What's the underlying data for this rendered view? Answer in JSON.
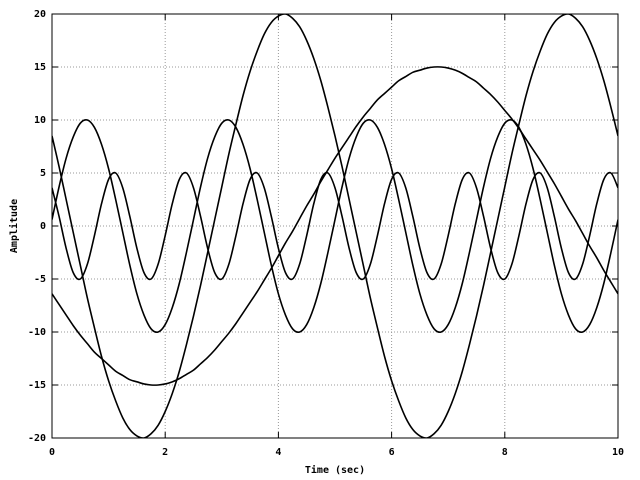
{
  "chart_data": {
    "type": "line",
    "xlabel": "Time (sec)",
    "ylabel": "Amplitude",
    "xlim": [
      0,
      10
    ],
    "ylim": [
      -20,
      20
    ],
    "xticks": [
      0,
      2,
      4,
      6,
      8,
      10
    ],
    "yticks": [
      -20,
      -15,
      -10,
      -5,
      0,
      5,
      10,
      15,
      20
    ],
    "grid": true,
    "x": [
      0,
      0.125,
      0.25,
      0.375,
      0.5,
      0.625,
      0.75,
      0.875,
      1,
      1.125,
      1.25,
      1.375,
      1.5,
      1.625,
      1.75,
      1.875,
      2,
      2.125,
      2.25,
      2.375,
      2.5,
      2.625,
      2.75,
      2.875,
      3,
      3.125,
      3.25,
      3.375,
      3.5,
      3.625,
      3.75,
      3.875,
      4,
      4.125,
      4.25,
      4.375,
      4.5,
      4.625,
      4.75,
      4.875,
      5,
      5.125,
      5.25,
      5.375,
      5.5,
      5.625,
      5.75,
      5.875,
      6,
      6.125,
      6.25,
      6.375,
      6.5,
      6.625,
      6.75,
      6.875,
      7,
      7.125,
      7.25,
      7.375,
      7.5,
      7.625,
      7.75,
      7.875,
      8,
      8.125,
      8.25,
      8.375,
      8.5,
      8.625,
      8.75,
      8.875,
      9,
      9.125,
      9.25,
      9.375,
      9.5,
      9.625,
      9.75,
      9.875,
      10
    ],
    "series": [
      {
        "color": "#000000",
        "values": [
          3.6,
          0.9,
          -2.1,
          -4.4,
          -5.0,
          -3.6,
          -0.9,
          2.1,
          4.4,
          5.0,
          3.6,
          0.9,
          -2.1,
          -4.4,
          -5.0,
          -3.6,
          -0.9,
          2.1,
          4.4,
          5.0,
          3.6,
          0.9,
          -2.1,
          -4.4,
          -5.0,
          -3.6,
          -0.9,
          2.1,
          4.4,
          5.0,
          3.6,
          0.9,
          -2.1,
          -4.4,
          -5.0,
          -3.6,
          -0.9,
          2.1,
          4.4,
          5.0,
          3.6,
          0.9,
          -2.1,
          -4.4,
          -5.0,
          -3.6,
          -0.9,
          2.1,
          4.4,
          5.0,
          3.6,
          0.9,
          -2.1,
          -4.4,
          -5.0,
          -3.6,
          -0.9,
          2.1,
          4.4,
          5.0,
          3.6,
          0.9,
          -2.1,
          -4.4,
          -5.0,
          -3.6,
          -0.9,
          2.1,
          4.4,
          5.0,
          3.6,
          0.9,
          -2.1,
          -4.4,
          -5.0,
          -3.6,
          -0.9,
          2.1,
          4.4,
          5.0,
          3.6
        ]
      },
      {
        "color": "#000000",
        "values": [
          0.6,
          3.7,
          6.4,
          8.4,
          9.7,
          10.0,
          9.3,
          7.7,
          5.4,
          2.5,
          -0.6,
          -3.7,
          -6.4,
          -8.4,
          -9.7,
          -10.0,
          -9.3,
          -7.7,
          -5.4,
          -2.5,
          0.6,
          3.7,
          6.4,
          8.4,
          9.7,
          10.0,
          9.3,
          7.7,
          5.4,
          2.5,
          -0.6,
          -3.7,
          -6.4,
          -8.4,
          -9.7,
          -10.0,
          -9.3,
          -7.7,
          -5.4,
          -2.5,
          0.6,
          3.7,
          6.4,
          8.4,
          9.7,
          10.0,
          9.3,
          7.7,
          5.4,
          2.5,
          -0.6,
          -3.7,
          -6.4,
          -8.4,
          -9.7,
          -10.0,
          -9.3,
          -7.7,
          -5.4,
          -2.5,
          0.6,
          3.7,
          6.4,
          8.4,
          9.7,
          10.0,
          9.3,
          7.7,
          5.4,
          2.5,
          -0.6,
          -3.7,
          -6.4,
          -8.4,
          -9.7,
          -10.0,
          -9.3,
          -7.7,
          -5.4,
          -2.5,
          0.6
        ]
      },
      {
        "color": "#000000",
        "values": [
          8.5,
          5.6,
          2.5,
          -0.6,
          -3.7,
          -6.8,
          -9.6,
          -12.3,
          -14.6,
          -16.5,
          -18.1,
          -19.2,
          -19.8,
          -20.0,
          -19.6,
          -18.8,
          -17.5,
          -15.8,
          -13.7,
          -11.2,
          -8.5,
          -5.6,
          -2.5,
          0.6,
          3.7,
          6.8,
          9.6,
          12.3,
          14.6,
          16.5,
          18.1,
          19.2,
          19.8,
          20.0,
          19.6,
          18.8,
          17.5,
          15.8,
          13.7,
          11.2,
          8.5,
          5.6,
          2.5,
          -0.6,
          -3.7,
          -6.8,
          -9.6,
          -12.3,
          -14.6,
          -16.5,
          -18.1,
          -19.2,
          -19.8,
          -20.0,
          -19.6,
          -18.8,
          -17.5,
          -15.8,
          -13.7,
          -11.2,
          -8.5,
          -5.6,
          -2.5,
          0.6,
          3.7,
          6.8,
          9.6,
          12.3,
          14.6,
          16.5,
          18.1,
          19.2,
          19.8,
          20.0,
          19.6,
          18.8,
          17.5,
          15.8,
          13.7,
          11.2,
          8.5
        ]
      },
      {
        "color": "#000000",
        "values": [
          -6.4,
          -7.4,
          -8.4,
          -9.4,
          -10.3,
          -11.1,
          -11.9,
          -12.5,
          -13.1,
          -13.7,
          -14.1,
          -14.5,
          -14.7,
          -14.9,
          -15.0,
          -15.0,
          -14.9,
          -14.7,
          -14.4,
          -14.0,
          -13.6,
          -13.0,
          -12.4,
          -11.7,
          -10.9,
          -10.1,
          -9.2,
          -8.2,
          -7.2,
          -6.2,
          -5.1,
          -4.0,
          -2.8,
          -1.6,
          -0.5,
          0.7,
          1.9,
          3.0,
          4.2,
          5.3,
          6.4,
          7.4,
          8.4,
          9.4,
          10.3,
          11.1,
          11.9,
          12.5,
          13.1,
          13.7,
          14.1,
          14.5,
          14.7,
          14.9,
          15.0,
          15.0,
          14.9,
          14.7,
          14.4,
          14.0,
          13.6,
          13.0,
          12.4,
          11.7,
          10.9,
          10.1,
          9.2,
          8.2,
          7.2,
          6.2,
          5.1,
          4.0,
          2.8,
          1.6,
          0.5,
          -0.7,
          -1.9,
          -3.0,
          -4.2,
          -5.3,
          -6.4
        ]
      }
    ]
  }
}
